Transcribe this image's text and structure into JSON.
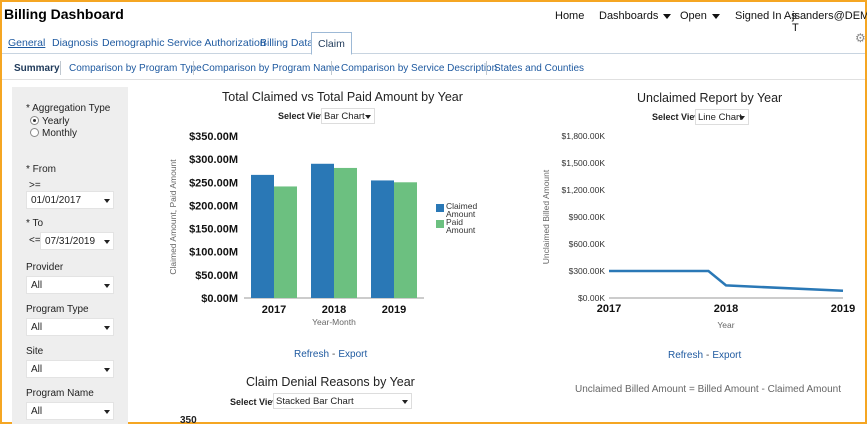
{
  "app": {
    "title": "Billing Dashboard"
  },
  "topnav": {
    "home": "Home",
    "dashboards": "Dashboards",
    "open": "Open",
    "signed_in_label": "Signed In As",
    "user": "jsanders@DEMO-T"
  },
  "tabs": [
    {
      "label": "General"
    },
    {
      "label": "Diagnosis"
    },
    {
      "label": "Demographic"
    },
    {
      "label": "Service Authorization"
    },
    {
      "label": "Billing Data"
    },
    {
      "label": "Claim"
    }
  ],
  "subtabs": [
    {
      "label": "Summary"
    },
    {
      "label": "Comparison by Program Type"
    },
    {
      "label": "Comparison by Program Name"
    },
    {
      "label": "Comparison by Service Description"
    },
    {
      "label": "States and Counties"
    }
  ],
  "filters": {
    "aggregation_label": "* Aggregation Type",
    "agg_options": [
      "Yearly",
      "Monthly"
    ],
    "agg_selected": "Yearly",
    "from_label": "* From",
    "from_op": ">=",
    "from_value": "01/01/2017",
    "to_label": "* To",
    "to_op": "<=",
    "to_value": "07/31/2019",
    "provider_label": "Provider",
    "provider_value": "All",
    "program_type_label": "Program Type",
    "program_type_value": "All",
    "site_label": "Site",
    "site_value": "All",
    "program_name_label": "Program Name",
    "program_name_value": "All"
  },
  "panel1": {
    "title": "Total Claimed vs Total Paid Amount by Year",
    "select_view_label": "Select View",
    "view_value": "Bar Chart",
    "refresh": "Refresh",
    "export": "Export"
  },
  "panel2": {
    "title": "Unclaimed Report by Year",
    "select_view_label": "Select View",
    "view_value": "Line Chart",
    "refresh": "Refresh",
    "export": "Export",
    "formula": "Unclaimed Billed Amount = Billed Amount - Claimed Amount"
  },
  "panel3": {
    "title": "Claim Denial Reasons by Year",
    "select_view_label": "Select View",
    "view_value": "Stacked Bar Chart",
    "first_tick": "350"
  },
  "colors": {
    "claimed": "#2a78b6",
    "paid": "#6cc080",
    "line": "#2a78b6",
    "link": "#1f5aa0",
    "border": "#f5a623"
  },
  "chart_data": [
    {
      "type": "bar",
      "title": "Total Claimed vs Total Paid Amount by Year",
      "categories": [
        "2017",
        "2018",
        "2019"
      ],
      "series": [
        {
          "name": "Claimed Amount",
          "values": [
            266,
            290,
            254
          ]
        },
        {
          "name": "Paid Amount",
          "values": [
            241,
            281,
            250
          ]
        }
      ],
      "unit": "M",
      "xlabel": "Year-Month",
      "ylabel": "Claimed Amount, Paid Amount",
      "ylim": [
        0,
        350
      ],
      "yticks": [
        "$0.00M",
        "$50.00M",
        "$100.00M",
        "$150.00M",
        "$200.00M",
        "$250.00M",
        "$300.00M",
        "$350.00M"
      ],
      "legend": "right"
    },
    {
      "type": "line",
      "title": "Unclaimed Report by Year",
      "x": [
        "2017",
        "2018",
        "2019"
      ],
      "series": [
        {
          "name": "Unclaimed Billed Amount",
          "points": [
            [
              2017.0,
              300
            ],
            [
              2017.85,
              300
            ],
            [
              2018.0,
              140
            ],
            [
              2019.0,
              80
            ]
          ]
        }
      ],
      "unit": "K",
      "xlabel": "Year",
      "ylabel": "Unclaimed Billed Amount",
      "ylim": [
        0,
        1800
      ],
      "yticks": [
        "$0.00K",
        "$300.00K",
        "$600.00K",
        "$900.00K",
        "$1,200.00K",
        "$1,500.00K",
        "$1,800.00K"
      ]
    }
  ]
}
